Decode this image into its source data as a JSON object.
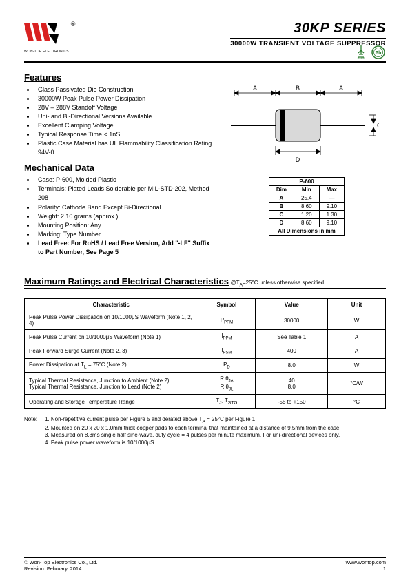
{
  "header": {
    "company_line": "WON-TOP ELECTRONICS",
    "series": "30KP SERIES",
    "subtitle": "30000W TRANSIENT VOLTAGE SUPPRESSOR",
    "rohs_label": "RoHS",
    "pb_label": "Pb"
  },
  "features": {
    "heading": "Features",
    "items": [
      "Glass Passivated Die Construction",
      "30000W Peak Pulse Power Dissipation",
      "28V – 288V Standoff Voltage",
      "Uni- and Bi-Directional Versions Available",
      "Excellent Clamping Voltage",
      "Typical Response Time < 1nS",
      "Plastic Case Material has UL Flammability Classification Rating 94V-0"
    ]
  },
  "mechdata": {
    "heading": "Mechanical Data",
    "items": [
      "Case: P-600, Molded Plastic",
      "Terminals: Plated Leads Solderable per MIL-STD-202, Method 208",
      "Polarity: Cathode Band Except Bi-Directional",
      "Weight: 2.10 grams (approx.)",
      "Mounting Position: Any",
      "Marking: Type Number"
    ],
    "leadfree": "Lead Free: For RoHS / Lead Free Version, Add \"-LF\" Suffix to Part Number, See Page 5"
  },
  "dimtable": {
    "title": "P-600",
    "cols": [
      "Dim",
      "Min",
      "Max"
    ],
    "rows": [
      [
        "A",
        "25.4",
        "—"
      ],
      [
        "B",
        "8.60",
        "9.10"
      ],
      [
        "C",
        "1.20",
        "1.30"
      ],
      [
        "D",
        "8.60",
        "9.10"
      ]
    ],
    "footer": "All Dimensions in mm"
  },
  "ratings": {
    "heading": "Maximum Ratings and Electrical Characteristics",
    "condition_prefix": "@T",
    "condition_sub": "A",
    "condition_suffix": "=25°C unless otherwise specified",
    "cols": [
      "Characteristic",
      "Symbol",
      "Value",
      "Unit"
    ],
    "rows": [
      {
        "c": "Peak Pulse Power Dissipation on 10/1000μS Waveform (Note 1, 2, 4)",
        "s_pre": "P",
        "s_sub": "PPM",
        "v": "30000",
        "u": "W"
      },
      {
        "c": "Peak Pulse Current on 10/1000μS Waveform (Note 1)",
        "s_pre": "I",
        "s_sub": "PPM",
        "v": "See Table 1",
        "u": "A"
      },
      {
        "c": "Peak Forward Surge Current (Note 2, 3)",
        "s_pre": "I",
        "s_sub": "FSM",
        "v": "400",
        "u": "A"
      },
      {
        "c_html": "Power Dissipation at T<sub>L</sub> = 75°C (Note 2)",
        "s_pre": "P",
        "s_sub": "D",
        "v": "8.0",
        "u": "W"
      },
      {
        "c_two": [
          "Typical Thermal Resistance, Junction to Ambient (Note 2)",
          "Typical Thermal Resistance, Junction to Lead (Note 2)"
        ],
        "s_two": [
          [
            "R θ",
            "JA"
          ],
          [
            "R θ",
            "JL"
          ]
        ],
        "v_two": [
          "40",
          "8.0"
        ],
        "u": "°C/W"
      },
      {
        "c": "Operating and Storage Temperature Range",
        "s_combo": "T<sub>J</sub>, T<sub>STG</sub>",
        "v": "-55 to +150",
        "u": "°C"
      }
    ]
  },
  "notes": {
    "label": "Note:",
    "items": [
      "1. Non-repetitive current pulse per Figure 5 and derated above T_A = 25°C per Figure 1.",
      "2. Mounted on 20 x 20 x 1.0mm thick copper pads to each terminal that maintained at a distance of 9.5mm from the case.",
      "3. Measured on 8.3ms single half sine-wave, duty cycle = 4 pulses per minute maximum. For uni-directional devices only.",
      "4. Peak pulse power waveform is 10/1000μS."
    ]
  },
  "footer": {
    "copyright": "© Won-Top Electronics Co., Ltd.",
    "revision": "Revision: February, 2014",
    "url": "www.wontop.com",
    "page": "1"
  },
  "colors": {
    "text": "#000000",
    "green": "#2E7D32",
    "logo_red": "#D92121",
    "gray_fill": "#D9D9D9"
  }
}
